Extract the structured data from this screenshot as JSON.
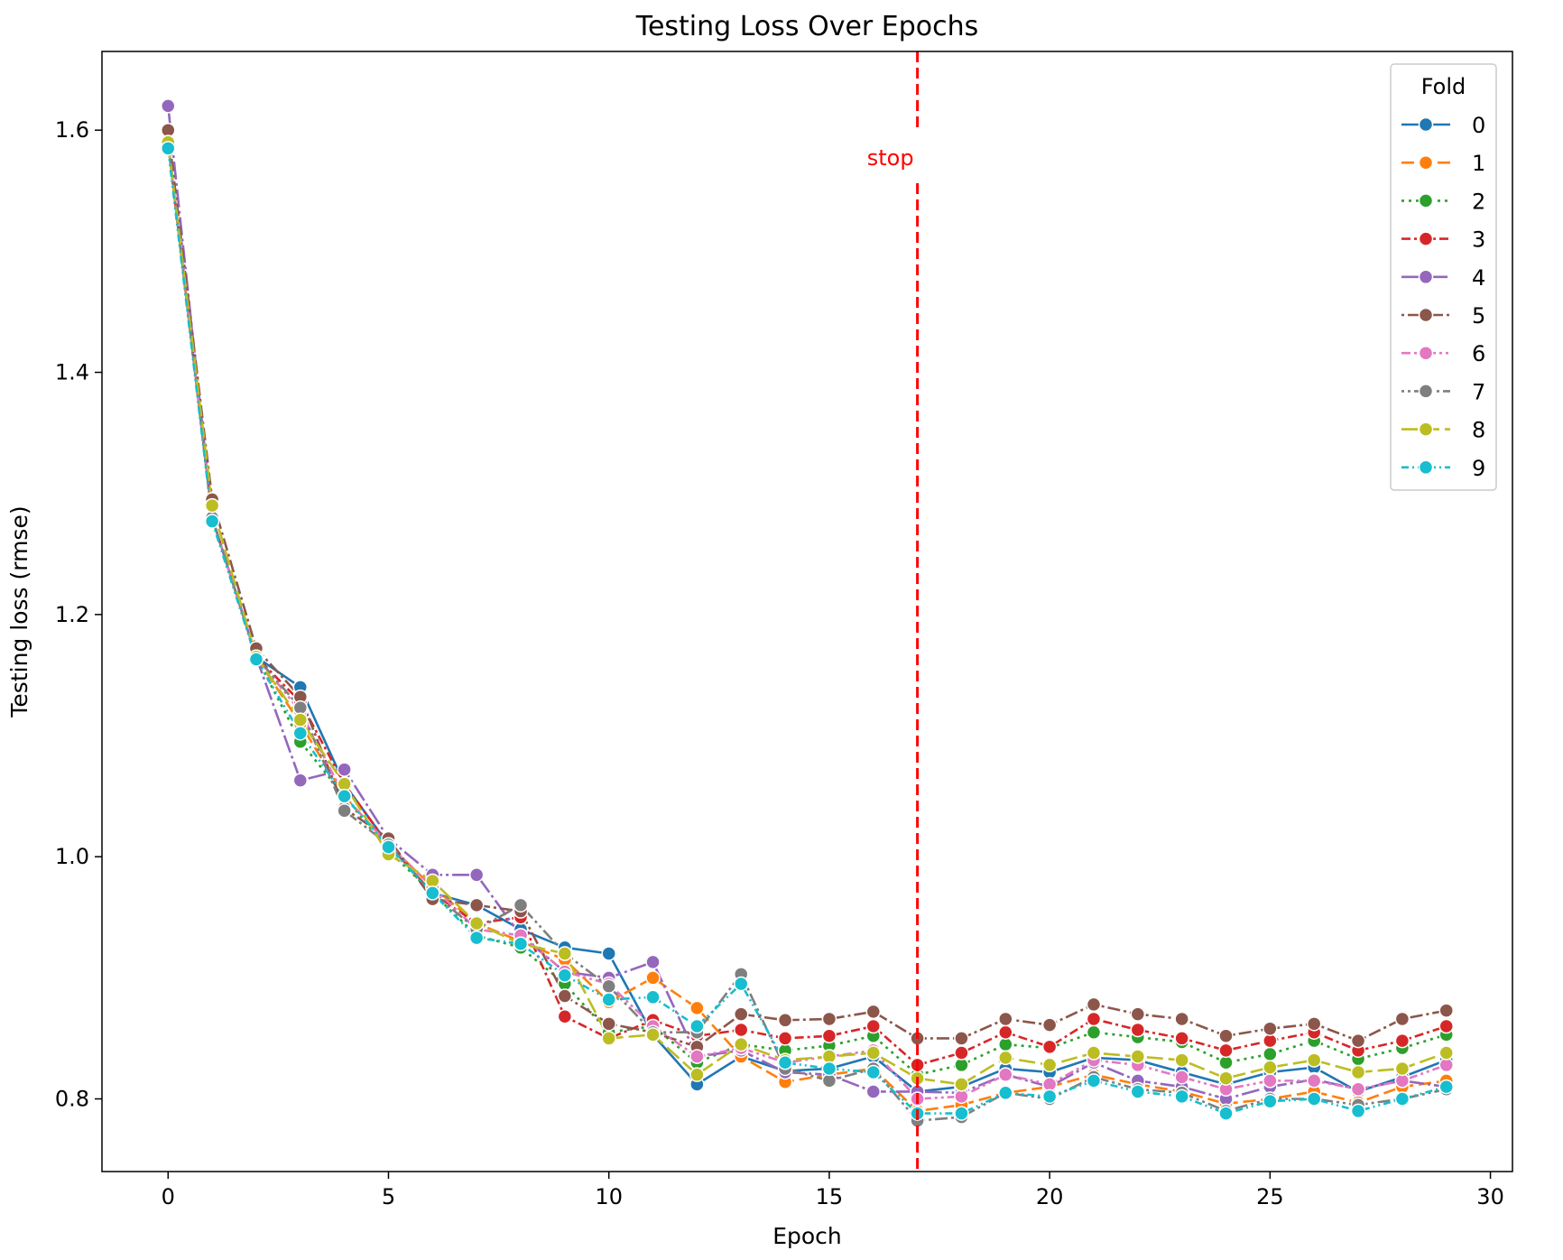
{
  "chart_data": {
    "type": "line",
    "title": "Testing Loss Over Epochs",
    "xlabel": "Epoch",
    "ylabel": "Testing loss (rmse)",
    "xlim": [
      -1.5,
      30.5
    ],
    "ylim": [
      0.74,
      1.665
    ],
    "xticks": [
      0,
      5,
      10,
      15,
      20,
      25,
      30
    ],
    "yticks": [
      0.8,
      1.0,
      1.2,
      1.4,
      1.6
    ],
    "xtick_labels": [
      "0",
      "5",
      "10",
      "15",
      "20",
      "25",
      "30"
    ],
    "ytick_labels": [
      "0.8",
      "1.0",
      "1.2",
      "1.4",
      "1.6"
    ],
    "grid": false,
    "legend": {
      "title": "Fold",
      "placement": "top-right"
    },
    "annotation": {
      "text": "stop",
      "x": 17,
      "color": "#ff0000"
    },
    "x": [
      0,
      1,
      2,
      3,
      4,
      5,
      6,
      7,
      8,
      9,
      10,
      11,
      12,
      13,
      14,
      15,
      16,
      17,
      18,
      19,
      20,
      21,
      22,
      23,
      24,
      25,
      26,
      27,
      28,
      29
    ],
    "series": [
      {
        "name": "0",
        "color": "#1f77b4",
        "dash": "",
        "values": [
          1.59,
          1.28,
          1.165,
          1.14,
          1.06,
          1.01,
          0.97,
          0.96,
          0.94,
          0.925,
          0.92,
          0.853,
          0.812,
          0.835,
          0.823,
          0.825,
          0.835,
          0.806,
          0.81,
          0.825,
          0.822,
          0.834,
          0.832,
          0.822,
          0.812,
          0.822,
          0.826,
          0.806,
          0.818,
          0.832
        ]
      },
      {
        "name": "1",
        "color": "#ff7f0e",
        "dash": "14,6",
        "values": [
          1.59,
          1.28,
          1.165,
          1.11,
          1.05,
          1.01,
          0.975,
          0.945,
          0.93,
          0.915,
          0.88,
          0.9,
          0.875,
          0.835,
          0.814,
          0.82,
          0.825,
          0.79,
          0.795,
          0.805,
          0.81,
          0.82,
          0.812,
          0.806,
          0.796,
          0.8,
          0.806,
          0.797,
          0.81,
          0.815
        ]
      },
      {
        "name": "2",
        "color": "#2ca02c",
        "dash": "3,5",
        "values": [
          1.59,
          1.28,
          1.165,
          1.095,
          1.05,
          1.005,
          0.97,
          0.935,
          0.925,
          0.895,
          0.855,
          0.86,
          0.83,
          0.845,
          0.84,
          0.844,
          0.852,
          0.82,
          0.828,
          0.845,
          0.842,
          0.855,
          0.851,
          0.847,
          0.83,
          0.837,
          0.848,
          0.833,
          0.842,
          0.853
        ]
      },
      {
        "name": "3",
        "color": "#d62728",
        "dash": "10,4,3,4",
        "values": [
          1.59,
          1.28,
          1.165,
          1.128,
          1.06,
          1.01,
          0.97,
          0.945,
          0.95,
          0.868,
          0.85,
          0.865,
          0.852,
          0.857,
          0.85,
          0.852,
          0.86,
          0.828,
          0.838,
          0.855,
          0.843,
          0.866,
          0.857,
          0.85,
          0.84,
          0.848,
          0.855,
          0.84,
          0.848,
          0.86
        ]
      },
      {
        "name": "4",
        "color": "#9467bd",
        "dash": "20,4,3,4",
        "values": [
          1.62,
          1.28,
          1.165,
          1.063,
          1.072,
          1.015,
          0.985,
          0.985,
          0.935,
          0.905,
          0.9,
          0.913,
          0.835,
          0.84,
          0.822,
          0.82,
          0.806,
          0.806,
          0.805,
          0.82,
          0.81,
          0.83,
          0.815,
          0.81,
          0.8,
          0.81,
          0.816,
          0.808,
          0.815,
          0.81
        ]
      },
      {
        "name": "5",
        "color": "#8c564b",
        "dash": "3,4,14,4",
        "values": [
          1.6,
          1.295,
          1.172,
          1.132,
          1.04,
          1.015,
          0.965,
          0.96,
          0.955,
          0.885,
          0.862,
          0.855,
          0.843,
          0.87,
          0.865,
          0.866,
          0.872,
          0.85,
          0.85,
          0.866,
          0.861,
          0.878,
          0.87,
          0.866,
          0.852,
          0.858,
          0.862,
          0.848,
          0.866,
          0.873
        ]
      },
      {
        "name": "6",
        "color": "#e377c2",
        "dash": "10,4,3,4,3,4",
        "values": [
          1.59,
          1.28,
          1.165,
          1.12,
          1.05,
          1.01,
          0.975,
          0.94,
          0.935,
          0.905,
          0.895,
          0.86,
          0.835,
          0.842,
          0.83,
          0.835,
          0.84,
          0.8,
          0.802,
          0.82,
          0.812,
          0.832,
          0.828,
          0.818,
          0.808,
          0.815,
          0.815,
          0.808,
          0.815,
          0.828
        ]
      },
      {
        "name": "7",
        "color": "#7f7f7f",
        "dash": "3,4,3,4,14,4",
        "values": [
          1.59,
          1.28,
          1.165,
          1.123,
          1.038,
          1.01,
          0.97,
          0.94,
          0.96,
          0.92,
          0.893,
          0.855,
          0.855,
          0.903,
          0.825,
          0.815,
          0.825,
          0.782,
          0.785,
          0.805,
          0.8,
          0.818,
          0.808,
          0.805,
          0.79,
          0.8,
          0.8,
          0.795,
          0.8,
          0.808
        ]
      },
      {
        "name": "8",
        "color": "#bcbd22",
        "dash": "18,6",
        "values": [
          1.59,
          1.29,
          1.165,
          1.113,
          1.06,
          1.002,
          0.98,
          0.945,
          0.928,
          0.92,
          0.85,
          0.853,
          0.82,
          0.845,
          0.832,
          0.835,
          0.838,
          0.817,
          0.812,
          0.834,
          0.828,
          0.838,
          0.835,
          0.832,
          0.817,
          0.826,
          0.832,
          0.822,
          0.825,
          0.838
        ]
      },
      {
        "name": "9",
        "color": "#17becf",
        "dash": "8,4,2,4,2,4",
        "values": [
          1.585,
          1.277,
          1.163,
          1.102,
          1.05,
          1.008,
          0.97,
          0.933,
          0.928,
          0.902,
          0.882,
          0.884,
          0.86,
          0.895,
          0.83,
          0.825,
          0.822,
          0.788,
          0.788,
          0.805,
          0.802,
          0.815,
          0.806,
          0.802,
          0.788,
          0.798,
          0.8,
          0.79,
          0.8,
          0.81
        ]
      }
    ]
  }
}
